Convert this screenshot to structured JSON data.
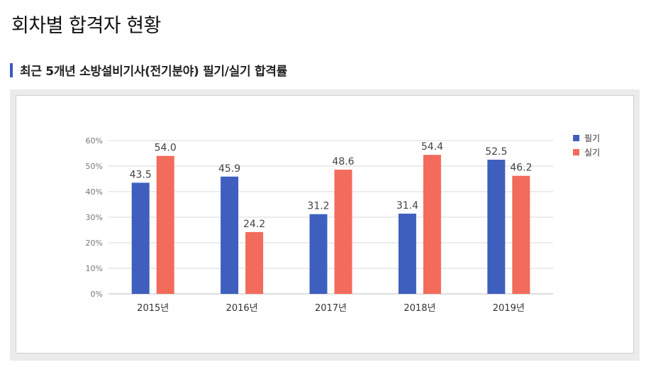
{
  "page": {
    "title": "회차별 합격자 현황"
  },
  "section": {
    "title": "최근 5개년 소방설비기사(전기분야) 필기/실기 합격률"
  },
  "colors": {
    "accent": "#3b5bbf",
    "series_written": "#3f5fbf",
    "series_practical": "#f26b5b",
    "grid": "#d9d9d9"
  },
  "chart_data": {
    "type": "bar",
    "title": "최근 5개년 소방설비기사(전기분야) 필기/실기 합격률",
    "categories": [
      "2015년",
      "2016년",
      "2017년",
      "2018년",
      "2019년"
    ],
    "series": [
      {
        "name": "필기",
        "values": [
          43.5,
          45.9,
          31.2,
          31.4,
          52.5
        ]
      },
      {
        "name": "실기",
        "values": [
          54.0,
          24.2,
          48.6,
          54.4,
          46.2
        ]
      }
    ],
    "value_labels": [
      [
        "43.5",
        "45.9",
        "31.2",
        "31.4",
        "52.5"
      ],
      [
        "54.0",
        "24.2",
        "48.6",
        "54.4",
        "46.2"
      ]
    ],
    "yticks": [
      0,
      10,
      20,
      30,
      40,
      50,
      60
    ],
    "ytick_labels": [
      "0%",
      "10%",
      "20%",
      "30%",
      "40%",
      "50%",
      "60%"
    ],
    "ylim": [
      0,
      60
    ],
    "xlabel": "",
    "ylabel": "",
    "grid": true,
    "legend_position": "top-right"
  }
}
